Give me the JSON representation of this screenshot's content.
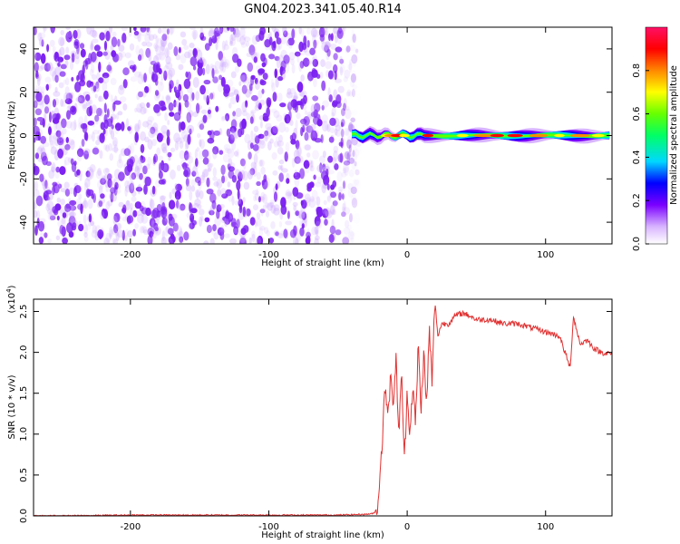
{
  "title": "GN04.2023.341.05.40.R14",
  "colors": {
    "spectrogram_noise": "#7b1ff0",
    "snr_line": "#e03030",
    "colorbar": [
      "#ffffff",
      "#d8b4ff",
      "#7a00ff",
      "#0000ff",
      "#00d8ff",
      "#00ff66",
      "#66ff00",
      "#ffff00",
      "#ff8800",
      "#ff0000",
      "#ff1066"
    ]
  },
  "chart_data": [
    {
      "type": "heatmap",
      "xlabel": "Height of straight line (km)",
      "ylabel": "Frequency (Hz)",
      "xlim": [
        -270,
        148
      ],
      "ylim": [
        -50,
        50
      ],
      "xticks": [
        -200,
        -100,
        0,
        100
      ],
      "xtick_labels": [
        "-200",
        "-100",
        "0",
        "100"
      ],
      "yticks": [
        -40,
        -20,
        0,
        20,
        40
      ],
      "ytick_labels": [
        "-40",
        "-20",
        "0",
        "20",
        "40"
      ],
      "noise_region_x": [
        -270,
        -40
      ],
      "signal_band_x": [
        -40,
        148
      ],
      "signal_band_frequency": 0,
      "colorbar": {
        "label": "Normalized spectral amplitude",
        "range": [
          0,
          1
        ],
        "ticks": [
          0.0,
          0.2,
          0.4,
          0.6,
          0.8
        ],
        "tick_labels": [
          "0.0",
          "0.2",
          "0.4",
          "0.6",
          "0.8"
        ]
      }
    },
    {
      "type": "line",
      "xlabel": "Height of straight line (km)",
      "ylabel": "SNR (10 * v/v)",
      "multiplier_label": "(x10",
      "multiplier_exponent": "4",
      "multiplier_close": ")",
      "xlim": [
        -270,
        148
      ],
      "ylim": [
        0,
        2.65
      ],
      "xticks": [
        -200,
        -100,
        0,
        100
      ],
      "xtick_labels": [
        "-200",
        "-100",
        "0",
        "100"
      ],
      "yticks": [
        0.0,
        0.5,
        1.0,
        1.5,
        2.0,
        2.5
      ],
      "ytick_labels": [
        "0.0",
        "0.5",
        "1.0",
        "1.5",
        "2.0",
        "2.5"
      ],
      "series": [
        {
          "x": [
            -270,
            -250,
            -200,
            -150,
            -100,
            -50,
            -30,
            -24,
            -21,
            -20,
            -18,
            -16,
            -14,
            -12,
            -10,
            -8,
            -6,
            -4,
            -2,
            0,
            2,
            4,
            6,
            8,
            10,
            12,
            14,
            16,
            18,
            20,
            22,
            25,
            30,
            35,
            40,
            45,
            50,
            60,
            70,
            80,
            90,
            100,
            110,
            118,
            120,
            125,
            130,
            135,
            140,
            148
          ],
          "y": [
            0.0,
            0.0,
            0.01,
            0.01,
            0.01,
            0.01,
            0.02,
            0.03,
            0.12,
            0.5,
            0.9,
            1.6,
            1.3,
            1.65,
            1.4,
            1.9,
            1.0,
            1.75,
            0.65,
            1.55,
            1.0,
            1.6,
            1.1,
            2.1,
            1.3,
            2.0,
            1.3,
            2.3,
            1.6,
            2.65,
            2.2,
            2.35,
            2.35,
            2.45,
            2.48,
            2.45,
            2.4,
            2.4,
            2.35,
            2.35,
            2.3,
            2.25,
            2.2,
            1.8,
            2.45,
            2.1,
            2.15,
            2.05,
            2.0,
            1.98
          ]
        }
      ]
    }
  ]
}
